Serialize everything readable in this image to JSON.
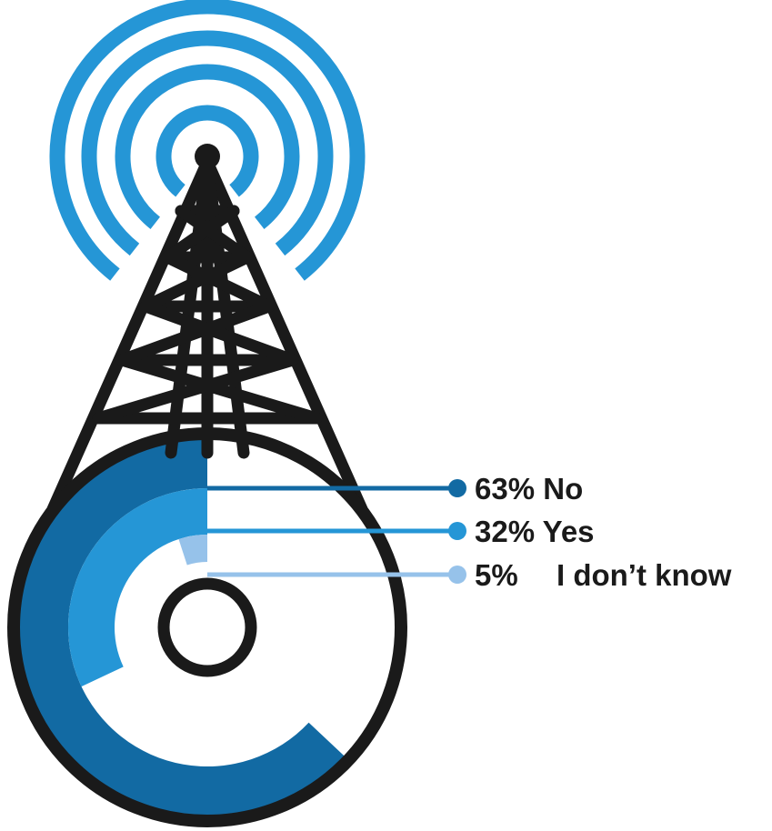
{
  "chart_data": {
    "type": "radial-bar",
    "series": [
      {
        "label": "No",
        "percent_text": "63%",
        "value": 63,
        "color": "#126aa3"
      },
      {
        "label": "Yes",
        "percent_text": "32%",
        "value": 32,
        "color": "#2596d6"
      },
      {
        "label": "I don’t know",
        "percent_text": "5%",
        "value": 5,
        "color": "#96c2ea"
      }
    ]
  },
  "colors": {
    "signal_waves": "#2596d6",
    "tower": "#1a1a1a"
  },
  "icons": {
    "tower": "radio-tower-icon",
    "waves": "signal-waves-icon"
  }
}
